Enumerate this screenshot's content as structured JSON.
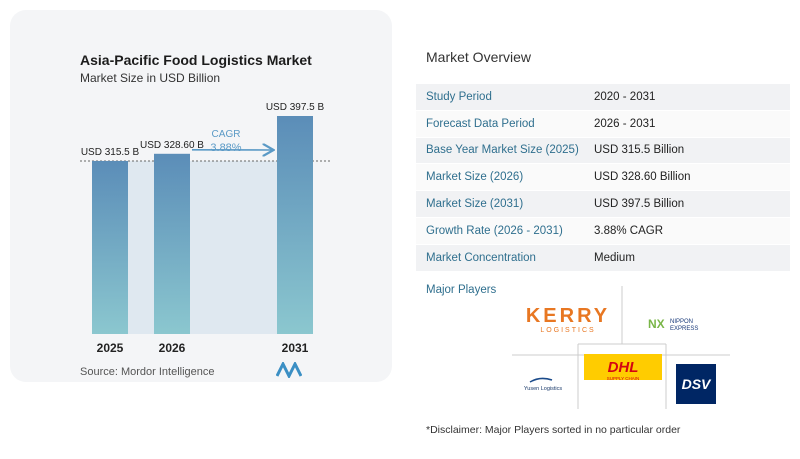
{
  "chart": {
    "title": "Asia-Pacific Food Logistics Market",
    "subtitle": "Market Size in USD Billion",
    "source": "Source:  Mordor Intelligence"
  },
  "chart_data": {
    "type": "bar",
    "title": "Asia-Pacific Food Logistics Market",
    "subtitle": "Market Size in USD Billion",
    "categories": [
      "2025",
      "2026",
      "2031"
    ],
    "values": [
      315.5,
      328.6,
      397.5
    ],
    "data_labels": [
      "USD 315.5 B",
      "USD 328.60 B",
      "USD 397.5 B"
    ],
    "cagr_label": "CAGR",
    "cagr_value": "3.88%",
    "ylim": [
      0,
      420
    ],
    "bar_color_top": "#5b8db8",
    "bar_color_bottom": "#8bc7cf",
    "highlight_color": "#dfe8f0"
  },
  "overview": {
    "title": "Market Overview",
    "rows": [
      {
        "key": "Study Period",
        "value": "2020 - 2031"
      },
      {
        "key": "Forecast Data Period",
        "value": "2026 - 2031"
      },
      {
        "key": "Base Year Market Size (2025)",
        "value": "USD 315.5 Billion"
      },
      {
        "key": "Market Size (2026)",
        "value": "USD 328.60 Billion"
      },
      {
        "key": "Market Size (2031)",
        "value": "USD 397.5 Billion"
      },
      {
        "key": "Growth Rate (2026 - 2031)",
        "value": "3.88% CAGR"
      },
      {
        "key": "Market Concentration",
        "value": "Medium"
      }
    ]
  },
  "players": {
    "title": "Major Players",
    "kerry": "KERRY",
    "kerry_sub": "LOGISTICS",
    "nippon_mark": "NX",
    "nippon_line1": "NIPPON",
    "nippon_line2": "EXPRESS",
    "dhl": "DHL",
    "dhl_sub": "SUPPLY CHAIN",
    "yusen": "Yusen Logistics",
    "dsv": "DSV"
  },
  "disclaimer": "*Disclaimer: Major Players sorted in no particular order"
}
